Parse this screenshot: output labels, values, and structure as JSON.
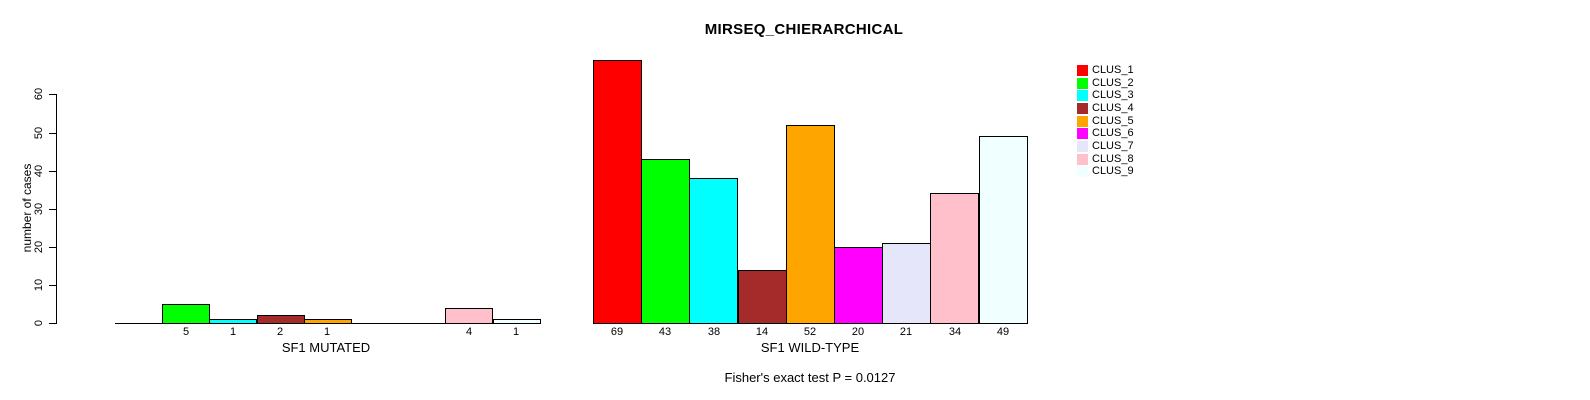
{
  "chart_data": {
    "type": "bar",
    "title": "MIRSEQ_CHIERARCHICAL",
    "ylabel": "number of cases",
    "ylim": [
      0,
      60
    ],
    "yticks": [
      0,
      10,
      20,
      30,
      40,
      50,
      60
    ],
    "grid": false,
    "legend_position": "right",
    "legend": [
      {
        "label": "CLUS_1",
        "color": "#FF0000"
      },
      {
        "label": "CLUS_2",
        "color": "#00FF00"
      },
      {
        "label": "CLUS_3",
        "color": "#00FFFF"
      },
      {
        "label": "CLUS_4",
        "color": "#A52A2A"
      },
      {
        "label": "CLUS_5",
        "color": "#FFA500"
      },
      {
        "label": "CLUS_6",
        "color": "#FF00FF"
      },
      {
        "label": "CLUS_7",
        "color": "#E6E6FA"
      },
      {
        "label": "CLUS_8",
        "color": "#FFC0CB"
      },
      {
        "label": "CLUS_9",
        "color": "#F0FFFF"
      }
    ],
    "groups": [
      {
        "label": "SF1 MUTATED",
        "values": [
          0,
          5,
          1,
          2,
          1,
          0,
          0,
          4,
          1
        ]
      },
      {
        "label": "SF1 WILD-TYPE",
        "values": [
          69,
          43,
          38,
          14,
          52,
          20,
          21,
          34,
          49
        ]
      }
    ],
    "footnote": "Fisher's exact test P = 0.0127"
  }
}
